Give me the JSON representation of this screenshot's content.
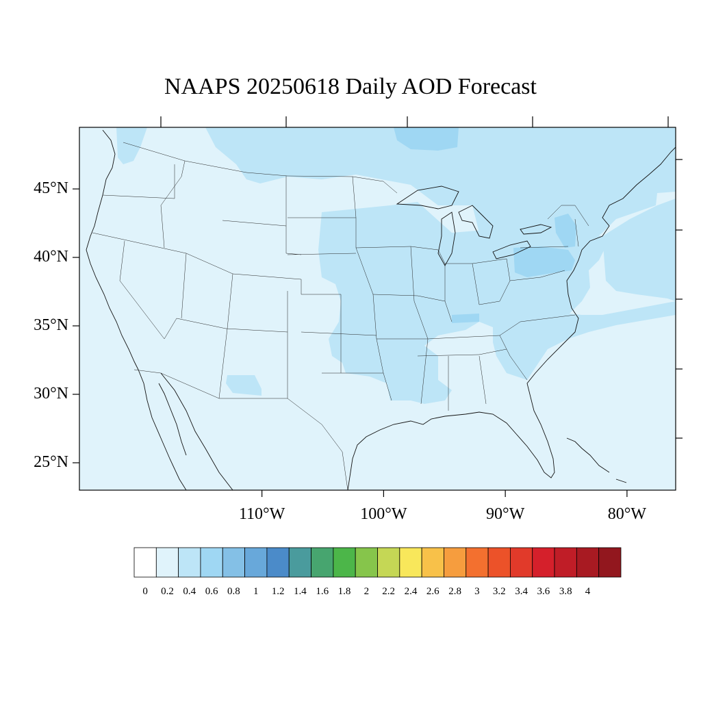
{
  "title": "NAAPS 20250618 Daily AOD Forecast",
  "map": {
    "projection": "cylindrical-equidistant",
    "lon_range": [
      -125,
      -76
    ],
    "lat_range": [
      23,
      49.5
    ],
    "lat_labels": [
      {
        "lat": 45,
        "text": "45°N"
      },
      {
        "lat": 40,
        "text": "40°N"
      },
      {
        "lat": 35,
        "text": "35°N"
      },
      {
        "lat": 30,
        "text": "30°N"
      },
      {
        "lat": 25,
        "text": "25°N"
      }
    ],
    "lon_labels": [
      {
        "lon": -110,
        "text": "110°W"
      },
      {
        "lon": -100,
        "text": "100°W"
      },
      {
        "lon": -90,
        "text": "90°W"
      },
      {
        "lon": -80,
        "text": "80°W"
      }
    ],
    "background_color": "#e0f3fb",
    "elevated_aod_color": "#bde5f7",
    "higher_aod_color": "#9fd7f3"
  },
  "colorbar": {
    "levels": [
      "0",
      "0.2",
      "0.4",
      "0.6",
      "0.8",
      "1",
      "1.2",
      "1.4",
      "1.6",
      "1.8",
      "2",
      "2.2",
      "2.4",
      "2.6",
      "2.8",
      "3",
      "3.2",
      "3.4",
      "3.6",
      "3.8",
      "4"
    ],
    "colors": [
      "#ffffff",
      "#e0f3fb",
      "#bde5f7",
      "#9fd7f3",
      "#84c0e6",
      "#68a8da",
      "#4b8bc9",
      "#4a9b9d",
      "#47a56f",
      "#4cb649",
      "#86c54b",
      "#c5d755",
      "#f8e75b",
      "#f8c149",
      "#f69d3e",
      "#f3702f",
      "#ec5229",
      "#e13a2a",
      "#d5202b",
      "#c01d27",
      "#a81a22",
      "#92171e"
    ]
  }
}
